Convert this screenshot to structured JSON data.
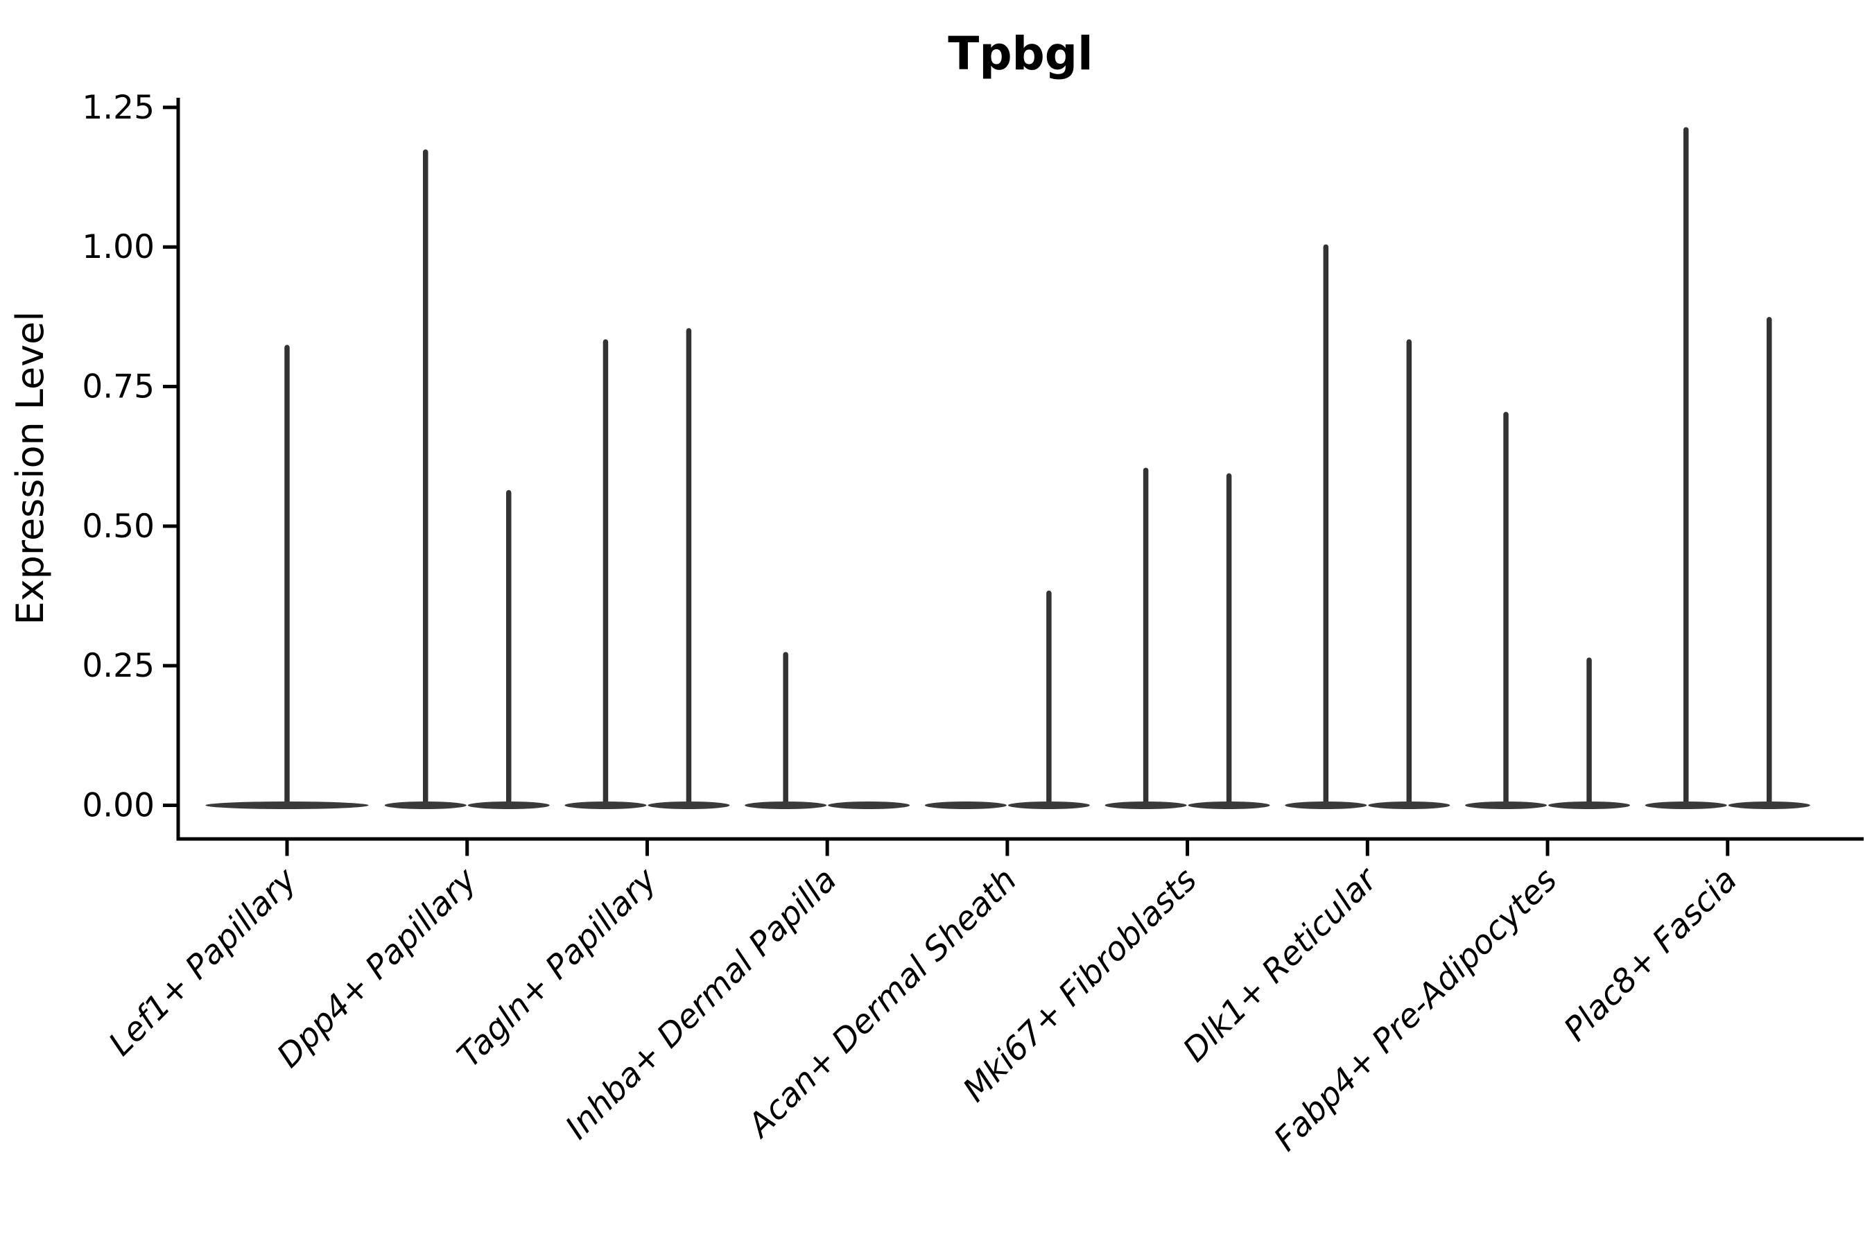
{
  "chart_data": {
    "type": "violin",
    "title": "Tpbgl",
    "xlabel": "",
    "ylabel": "Expression Level",
    "ylim": [
      -0.06,
      1.27
    ],
    "grid": false,
    "legend": "none",
    "ytick_labels": [
      "0.00",
      "0.25",
      "0.50",
      "0.75",
      "1.00",
      "1.25"
    ],
    "ytick_values": [
      0.0,
      0.25,
      0.5,
      0.75,
      1.0,
      1.25
    ],
    "categories": [
      {
        "label": "Lef1+ Papillary",
        "violin_max_values": [
          0.82
        ]
      },
      {
        "label": "Dpp4+ Papillary",
        "violin_max_values": [
          1.17,
          0.56
        ]
      },
      {
        "label": "Tagln+ Papillary",
        "violin_max_values": [
          0.83,
          0.85
        ]
      },
      {
        "label": "Inhba+ Dermal Papilla",
        "violin_max_values": [
          0.27,
          0.0
        ]
      },
      {
        "label": "Acan+ Dermal Sheath",
        "violin_max_values": [
          0.0,
          0.38
        ]
      },
      {
        "label": "Mki67+ Fibroblasts",
        "violin_max_values": [
          0.6,
          0.59
        ]
      },
      {
        "label": "Dlk1+ Reticular",
        "violin_max_values": [
          1.0,
          0.83
        ]
      },
      {
        "label": "Fabp4+ Pre-Adipocytes",
        "violin_max_values": [
          0.7,
          0.26
        ]
      },
      {
        "label": "Plac8+ Fascia",
        "violin_max_values": [
          1.21,
          0.87
        ]
      }
    ],
    "colors": {
      "violin_fill": "#3a3a3a",
      "spike_stroke": "#333333",
      "axis": "#000000",
      "text": "#000000",
      "background": "#ffffff"
    }
  }
}
